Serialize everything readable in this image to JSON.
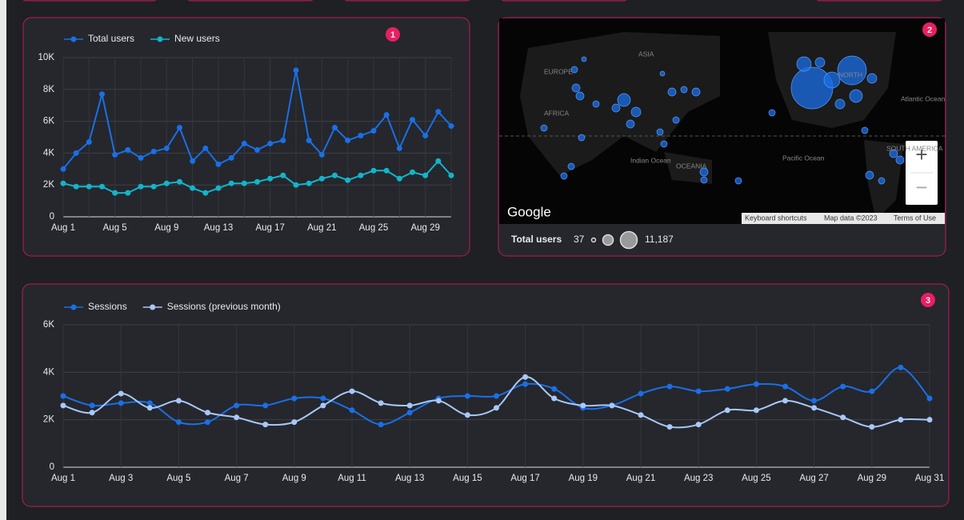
{
  "chart_data": [
    {
      "type": "line",
      "badge": "1",
      "categories": [
        "Aug 1",
        null,
        null,
        null,
        "Aug 5",
        null,
        null,
        null,
        "Aug 9",
        null,
        null,
        null,
        "Aug 13",
        null,
        null,
        null,
        "Aug 17",
        null,
        null,
        null,
        "Aug 21",
        null,
        null,
        null,
        "Aug 25",
        null,
        null,
        null,
        "Aug 29",
        null,
        null
      ],
      "series": [
        {
          "name": "Total users",
          "color": "#1a6fe8",
          "values": [
            3000,
            4000,
            4700,
            7700,
            3900,
            4200,
            3700,
            4100,
            4300,
            5600,
            3500,
            4300,
            3300,
            3700,
            4600,
            4200,
            4600,
            4800,
            9200,
            4800,
            3900,
            5600,
            4800,
            5100,
            5400,
            6400,
            4300,
            6100,
            5100,
            6600,
            5700
          ]
        },
        {
          "name": "New users",
          "color": "#12b5cb",
          "values": [
            2100,
            1900,
            1900,
            1900,
            1500,
            1500,
            1900,
            1900,
            2100,
            2200,
            1800,
            1500,
            1800,
            2100,
            2100,
            2200,
            2400,
            2600,
            2000,
            2100,
            2400,
            2600,
            2300,
            2600,
            2900,
            2900,
            2400,
            2800,
            2600,
            3500,
            2600
          ]
        }
      ],
      "ylim": [
        0,
        10000
      ],
      "yticks": [
        0,
        {
          "value": 2000,
          "label": "2K"
        },
        {
          "value": 4000,
          "label": "4K"
        },
        {
          "value": 6000,
          "label": "6K"
        },
        {
          "value": 8000,
          "label": "8K"
        },
        {
          "value": 10000,
          "label": "10K"
        }
      ],
      "grid": true,
      "smooth": false
    },
    {
      "type": "line",
      "badge": "3",
      "categories": [
        "Aug 1",
        null,
        "Aug 3",
        null,
        "Aug 5",
        null,
        "Aug 7",
        null,
        "Aug 9",
        null,
        "Aug 11",
        null,
        "Aug 13",
        null,
        "Aug 15",
        null,
        "Aug 17",
        null,
        "Aug 19",
        null,
        "Aug 21",
        null,
        "Aug 23",
        null,
        "Aug 25",
        null,
        "Aug 27",
        null,
        "Aug 29",
        null,
        "Aug 31"
      ],
      "series": [
        {
          "name": "Sessions",
          "color": "#1a6fe8",
          "values": [
            3000,
            2600,
            2700,
            2700,
            1900,
            1900,
            2600,
            2600,
            2900,
            2900,
            2400,
            1800,
            2300,
            2900,
            3000,
            3000,
            3500,
            3300,
            2500,
            2600,
            3100,
            3400,
            3200,
            3300,
            3500,
            3400,
            2800,
            3400,
            3200,
            4200,
            2900
          ]
        },
        {
          "name": "Sessions (previous month)",
          "color": "#a8c7fa",
          "values": [
            2600,
            2300,
            3100,
            2500,
            2800,
            2300,
            2100,
            1800,
            1900,
            2600,
            3200,
            2700,
            2600,
            2800,
            2200,
            2500,
            3800,
            2900,
            2600,
            2600,
            2200,
            1700,
            1800,
            2400,
            2400,
            2800,
            2500,
            2100,
            1700,
            2000,
            2000
          ]
        }
      ],
      "ylim": [
        0,
        6000
      ],
      "yticks": [
        0,
        {
          "value": 2000,
          "label": "2K"
        },
        {
          "value": 4000,
          "label": "4K"
        },
        {
          "value": 6000,
          "label": "6K"
        }
      ],
      "grid": true,
      "smooth": true
    }
  ],
  "map": {
    "badge": "2",
    "labels": [
      "EUROPE",
      "ASIA",
      "AFRICA",
      "Indian Ocean",
      "OCEANIA",
      "NORTH",
      "Atlantic Ocean",
      "Pacific Ocean",
      "SOUTH AMERICA"
    ],
    "logo": "Google",
    "footer": [
      "Keyboard shortcuts",
      "Map data ©2023",
      "Terms of Use"
    ],
    "zoom": [
      "+",
      "−"
    ],
    "legend_title": "Total users",
    "size_legend": {
      "min": 37,
      "max": {
        "value": 11187,
        "label": "11,187"
      }
    }
  }
}
